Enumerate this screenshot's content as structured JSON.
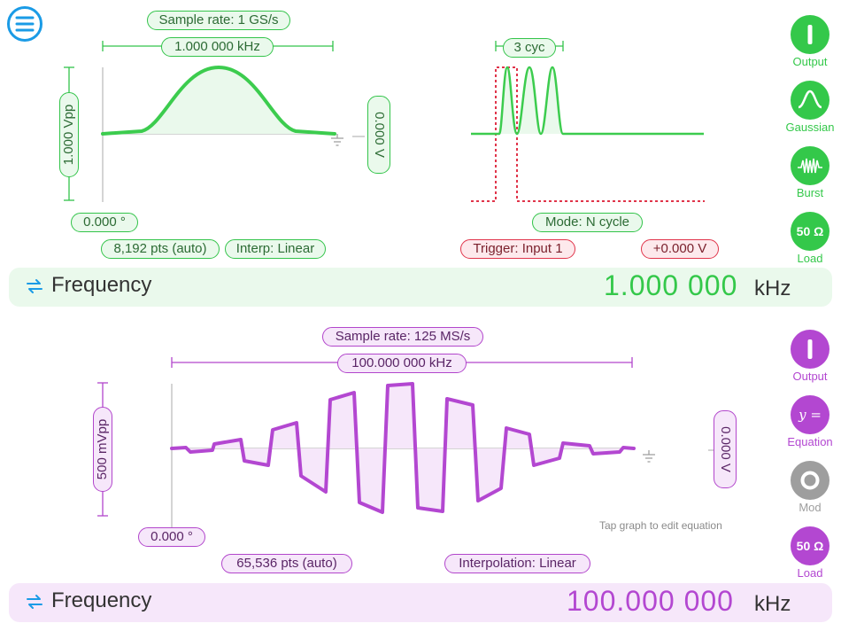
{
  "menu": {
    "icon": "hamburger-menu-icon"
  },
  "channel1": {
    "color": "#34c84a",
    "sample_rate": "Sample rate: 1 GS/s",
    "frequency_pill": "1.000 000 kHz",
    "amplitude": "1.000 Vpp",
    "offset": "0.000 V",
    "phase": "0.000 °",
    "points": "8,192 pts (auto)",
    "interp": "Interp: Linear",
    "burst_cycles": "3 cyc",
    "burst_mode": "Mode: N cycle",
    "trigger": "Trigger: Input 1",
    "trigger_level": "+0.000 V",
    "buttons": {
      "output": "Output",
      "wave": "Gaussian",
      "burst": "Burst",
      "load_value": "50 Ω",
      "load": "Load"
    },
    "freq_bar": {
      "label": "Frequency",
      "value": "1.000 000",
      "unit": "kHz"
    }
  },
  "channel2": {
    "color": "#b347d1",
    "sample_rate": "Sample rate: 125 MS/s",
    "frequency_pill": "100.000 000 kHz",
    "amplitude": "500 mVpp",
    "offset": "0.000 V",
    "phase": "0.000 °",
    "points": "65,536 pts (auto)",
    "interp": "Interpolation: Linear",
    "hint": "Tap graph to edit equation",
    "buttons": {
      "output": "Output",
      "equation_symbol": "y =",
      "equation": "Equation",
      "mod": "Mod",
      "load_value": "50 Ω",
      "load": "Load"
    },
    "freq_bar": {
      "label": "Frequency",
      "value": "100.000 000",
      "unit": "kHz"
    }
  }
}
